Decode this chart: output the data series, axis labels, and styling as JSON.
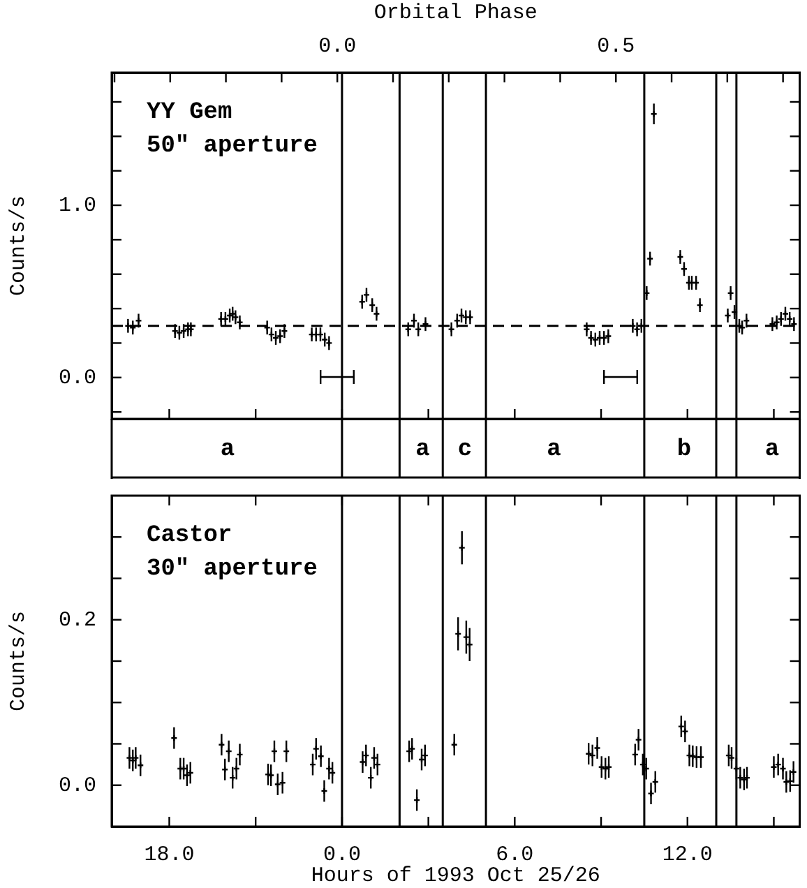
{
  "chart_data": [
    {
      "type": "scatter",
      "ylabel": "Counts/s",
      "x2label": "Orbital Phase",
      "xlim": [
        "1993-10-25T16:00",
        "1993-10-26T15:54"
      ],
      "xticks": [
        {
          "value": "1993-10-25T18:00",
          "label": null
        },
        {
          "value": "1993-10-25T21:00",
          "label": null
        },
        {
          "value": "1993-10-26T00:00",
          "label": null
        },
        {
          "value": "1993-10-26T03:00",
          "label": null
        },
        {
          "value": "1993-10-26T06:00",
          "label": null
        },
        {
          "value": "1993-10-26T09:00",
          "label": null
        },
        {
          "value": "1993-10-26T12:00",
          "label": null
        },
        {
          "value": "1993-10-26T15:00",
          "label": null
        }
      ],
      "x2lim": [
        -0.405,
        0.83
      ],
      "x2ticks": [
        {
          "value": -0.4,
          "label": null
        },
        {
          "value": -0.3,
          "label": null
        },
        {
          "value": -0.2,
          "label": null
        },
        {
          "value": -0.1,
          "label": null
        },
        {
          "value": 0,
          "label": "0.0"
        },
        {
          "value": 0.1,
          "label": null
        },
        {
          "value": 0.2,
          "label": null
        },
        {
          "value": 0.3,
          "label": null
        },
        {
          "value": 0.4,
          "label": null
        },
        {
          "value": 0.5,
          "label": "0.5"
        },
        {
          "value": 0.6,
          "label": null
        },
        {
          "value": 0.7,
          "label": null
        },
        {
          "value": 0.8,
          "label": null
        }
      ],
      "ylim": [
        -0.24,
        1.77
      ],
      "yticks": [
        {
          "value": -0.2,
          "label": null
        },
        {
          "value": 0,
          "label": "0.0"
        },
        {
          "value": 0.2,
          "label": null
        },
        {
          "value": 0.4,
          "label": null
        },
        {
          "value": 0.6,
          "label": null
        },
        {
          "value": 0.8,
          "label": null
        },
        {
          "value": 1,
          "label": "1.0"
        },
        {
          "value": 1.2,
          "label": null
        },
        {
          "value": 1.4,
          "label": null
        },
        {
          "value": 1.6,
          "label": null
        }
      ],
      "tick_labels": "y",
      "marker": "cross",
      "ref_lines": [
        {
          "axis": "y",
          "value": 0.3,
          "line_style": "dashed"
        },
        {
          "axis": "x",
          "value": "1993-10-26T00:00"
        },
        {
          "axis": "x",
          "value": "1993-10-26T02:00"
        },
        {
          "axis": "x",
          "value": "1993-10-26T03:30"
        },
        {
          "axis": "x",
          "value": "1993-10-26T05:00"
        },
        {
          "axis": "x",
          "value": "1993-10-26T10:30"
        },
        {
          "axis": "x",
          "value": "1993-10-26T13:00"
        },
        {
          "axis": "x",
          "value": "1993-10-26T13:42"
        }
      ],
      "annotations": [
        "YY Gem",
        "50″ aperture",
        "a",
        "a",
        "c",
        "a",
        "b",
        "a"
      ],
      "series": [
        {
          "color": "#000000",
          "x": [
            "1993-10-25T16:34",
            "1993-10-25T16:44",
            "1993-10-25T16:56",
            "1993-10-25T18:12",
            "1993-10-25T18:21",
            "1993-10-25T18:30",
            "1993-10-25T18:39",
            "1993-10-25T18:45",
            "1993-10-25T19:48",
            "1993-10-25T19:57",
            "1993-10-25T20:06",
            "1993-10-25T20:12",
            "1993-10-25T20:18",
            "1993-10-25T20:27",
            "1993-10-25T21:24",
            "1993-10-25T21:33",
            "1993-10-25T21:42",
            "1993-10-25T21:51",
            "1993-10-25T22:00",
            "1993-10-25T22:57",
            "1993-10-25T23:06",
            "1993-10-25T23:15",
            "1993-10-25T23:24",
            "1993-10-25T23:33",
            "1993-10-26T00:42",
            "1993-10-26T00:51",
            "1993-10-26T01:03",
            "1993-10-26T01:12",
            "1993-10-26T02:18",
            "1993-10-26T02:30",
            "1993-10-26T02:39",
            "1993-10-26T02:54",
            "1993-10-26T03:48",
            "1993-10-26T04:00",
            "1993-10-26T04:09",
            "1993-10-26T04:18",
            "1993-10-26T04:27",
            "1993-10-26T08:30",
            "1993-10-26T08:39",
            "1993-10-26T08:48",
            "1993-10-26T08:57",
            "1993-10-26T09:06",
            "1993-10-26T09:15",
            "1993-10-26T10:06",
            "1993-10-26T10:15",
            "1993-10-26T10:24",
            "1993-10-26T10:35",
            "1993-10-26T10:42",
            "1993-10-26T10:50",
            "1993-10-26T11:45",
            "1993-10-26T11:53",
            "1993-10-26T12:03",
            "1993-10-26T12:09",
            "1993-10-26T12:18",
            "1993-10-26T12:26",
            "1993-10-26T13:24",
            "1993-10-26T13:30",
            "1993-10-26T13:38",
            "1993-10-26T13:48",
            "1993-10-26T13:54",
            "1993-10-26T14:03",
            "1993-10-26T14:57",
            "1993-10-26T15:06",
            "1993-10-26T15:15",
            "1993-10-26T15:24",
            "1993-10-26T15:33",
            "1993-10-26T15:42"
          ],
          "values": [
            0.3,
            0.29,
            0.33,
            0.27,
            0.26,
            0.27,
            0.28,
            0.28,
            0.34,
            0.34,
            0.36,
            0.37,
            0.35,
            0.32,
            0.29,
            0.25,
            0.23,
            0.24,
            0.27,
            0.25,
            0.25,
            0.25,
            0.22,
            0.2,
            0.44,
            0.48,
            0.42,
            0.37,
            0.28,
            0.33,
            0.28,
            0.31,
            0.28,
            0.33,
            0.36,
            0.35,
            0.35,
            0.28,
            0.23,
            0.22,
            0.23,
            0.23,
            0.24,
            0.3,
            0.28,
            0.3,
            0.49,
            0.69,
            1.53,
            0.7,
            0.63,
            0.55,
            0.55,
            0.55,
            0.42,
            0.36,
            0.49,
            0.38,
            0.3,
            0.29,
            0.33,
            0.31,
            0.32,
            0.34,
            0.37,
            0.34,
            0.31
          ],
          "errors": [
            0.04,
            0.04,
            0.04,
            0.04,
            0.04,
            0.04,
            0.04,
            0.04,
            0.04,
            0.04,
            0.04,
            0.04,
            0.04,
            0.04,
            0.04,
            0.04,
            0.04,
            0.04,
            0.04,
            0.04,
            0.04,
            0.04,
            0.04,
            0.04,
            0.04,
            0.04,
            0.04,
            0.04,
            0.04,
            0.04,
            0.04,
            0.04,
            0.04,
            0.04,
            0.04,
            0.04,
            0.04,
            0.04,
            0.04,
            0.04,
            0.04,
            0.04,
            0.04,
            0.04,
            0.04,
            0.04,
            0.04,
            0.04,
            0.06,
            0.04,
            0.04,
            0.04,
            0.04,
            0.04,
            0.04,
            0.04,
            0.04,
            0.04,
            0.04,
            0.04,
            0.04,
            0.04,
            0.04,
            0.04,
            0.04,
            0.04,
            0.04
          ]
        }
      ]
    },
    {
      "type": "scatter",
      "ylabel": "Counts/s",
      "xlabel": "Hours of 1993 Oct 25/26",
      "xlim": [
        "1993-10-25T16:00",
        "1993-10-26T15:54"
      ],
      "xticks": [
        {
          "value": "1993-10-25T18:00",
          "label": "18.0"
        },
        {
          "value": "1993-10-25T21:00",
          "label": null
        },
        {
          "value": "1993-10-26T00:00",
          "label": "0.0"
        },
        {
          "value": "1993-10-26T03:00",
          "label": null
        },
        {
          "value": "1993-10-26T06:00",
          "label": "6.0"
        },
        {
          "value": "1993-10-26T09:00",
          "label": null
        },
        {
          "value": "1993-10-26T12:00",
          "label": "12.0"
        },
        {
          "value": "1993-10-26T15:00",
          "label": null
        }
      ],
      "ylim": [
        -0.05,
        0.35
      ],
      "yticks": [
        {
          "value": 0,
          "label": "0.0"
        },
        {
          "value": 0.05,
          "label": null
        },
        {
          "value": 0.1,
          "label": null
        },
        {
          "value": 0.15,
          "label": null
        },
        {
          "value": 0.2,
          "label": "0.2"
        },
        {
          "value": 0.25,
          "label": null
        },
        {
          "value": 0.3,
          "label": null
        }
      ],
      "marker": "cross",
      "ref_lines": [
        {
          "axis": "x",
          "value": "1993-10-26T00:00"
        },
        {
          "axis": "x",
          "value": "1993-10-26T02:00"
        },
        {
          "axis": "x",
          "value": "1993-10-26T03:30"
        },
        {
          "axis": "x",
          "value": "1993-10-26T05:00"
        },
        {
          "axis": "x",
          "value": "1993-10-26T10:30"
        },
        {
          "axis": "x",
          "value": "1993-10-26T13:00"
        },
        {
          "axis": "x",
          "value": "1993-10-26T13:42"
        }
      ],
      "annotations": [
        "Castor",
        "30″ aperture"
      ],
      "series": [
        {
          "color": "#000000",
          "x": [
            "1993-10-25T16:37",
            "1993-10-25T16:44",
            "1993-10-25T16:50",
            "1993-10-25T17:00",
            "1993-10-25T18:10",
            "1993-10-25T18:23",
            "1993-10-25T18:30",
            "1993-10-25T18:37",
            "1993-10-25T18:44",
            "1993-10-25T19:49",
            "1993-10-25T19:56",
            "1993-10-25T20:04",
            "1993-10-25T20:12",
            "1993-10-25T20:20",
            "1993-10-25T20:27",
            "1993-10-25T21:26",
            "1993-10-25T21:32",
            "1993-10-25T21:39",
            "1993-10-25T21:46",
            "1993-10-25T21:56",
            "1993-10-25T22:04",
            "1993-10-25T22:59",
            "1993-10-25T23:06",
            "1993-10-25T23:16",
            "1993-10-25T23:23",
            "1993-10-25T23:33",
            "1993-10-25T23:40",
            "1993-10-26T00:43",
            "1993-10-26T00:50",
            "1993-10-26T01:00",
            "1993-10-26T01:07",
            "1993-10-26T01:14",
            "1993-10-26T02:20",
            "1993-10-26T02:26",
            "1993-10-26T02:36",
            "1993-10-26T02:46",
            "1993-10-26T02:53",
            "1993-10-26T03:54",
            "1993-10-26T04:02",
            "1993-10-26T04:10",
            "1993-10-26T04:19",
            "1993-10-26T04:26",
            "1993-10-26T08:34",
            "1993-10-26T08:42",
            "1993-10-26T08:52",
            "1993-10-26T09:01",
            "1993-10-26T09:09",
            "1993-10-26T09:16",
            "1993-10-26T10:11",
            "1993-10-26T10:18",
            "1993-10-26T10:27",
            "1993-10-26T10:34",
            "1993-10-26T10:44",
            "1993-10-26T10:53",
            "1993-10-26T11:47",
            "1993-10-26T11:55",
            "1993-10-26T12:04",
            "1993-10-26T12:11",
            "1993-10-26T12:19",
            "1993-10-26T12:28",
            "1993-10-26T13:26",
            "1993-10-26T13:32",
            "1993-10-26T13:42",
            "1993-10-26T13:50",
            "1993-10-26T13:58",
            "1993-10-26T14:04",
            "1993-10-26T15:00",
            "1993-10-26T15:09",
            "1993-10-26T15:19",
            "1993-10-26T15:26",
            "1993-10-26T15:34",
            "1993-10-26T15:41"
          ],
          "values": [
            0.033,
            0.03,
            0.033,
            0.024,
            0.057,
            0.02,
            0.02,
            0.012,
            0.015,
            0.049,
            0.019,
            0.041,
            0.009,
            0.02,
            0.037,
            0.013,
            0.012,
            0.041,
            0.001,
            0.003,
            0.041,
            0.025,
            0.044,
            0.035,
            -0.007,
            0.02,
            0.015,
            0.028,
            0.036,
            0.009,
            0.033,
            0.025,
            0.041,
            0.044,
            -0.018,
            0.031,
            0.036,
            0.049,
            0.183,
            0.287,
            0.179,
            0.17,
            0.038,
            0.036,
            0.045,
            0.022,
            0.02,
            0.022,
            0.037,
            0.055,
            0.025,
            0.02,
            -0.01,
            0.004,
            0.071,
            0.065,
            0.036,
            0.035,
            0.034,
            0.034,
            0.036,
            0.033,
            0.02,
            0.009,
            0.007,
            0.009,
            0.022,
            0.025,
            0.02,
            0.004,
            0.005,
            0.016
          ],
          "errors": [
            0.013,
            0.013,
            0.013,
            0.013,
            0.013,
            0.013,
            0.013,
            0.013,
            0.013,
            0.013,
            0.013,
            0.013,
            0.013,
            0.013,
            0.013,
            0.013,
            0.013,
            0.013,
            0.013,
            0.013,
            0.013,
            0.013,
            0.013,
            0.013,
            0.013,
            0.013,
            0.013,
            0.013,
            0.013,
            0.013,
            0.013,
            0.013,
            0.013,
            0.013,
            0.013,
            0.013,
            0.013,
            0.013,
            0.02,
            0.02,
            0.02,
            0.02,
            0.013,
            0.013,
            0.013,
            0.013,
            0.013,
            0.013,
            0.013,
            0.013,
            0.013,
            0.013,
            0.013,
            0.013,
            0.013,
            0.013,
            0.013,
            0.013,
            0.013,
            0.013,
            0.013,
            0.013,
            0.013,
            0.013,
            0.013,
            0.013,
            0.013,
            0.013,
            0.013,
            0.013,
            0.013,
            0.013
          ]
        }
      ]
    }
  ]
}
